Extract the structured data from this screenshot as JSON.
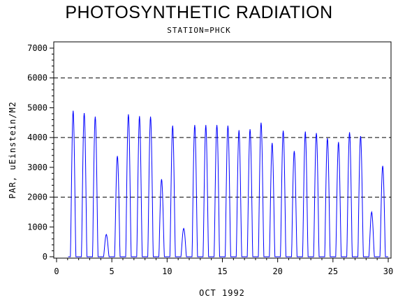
{
  "chart_data": {
    "type": "line",
    "title": "PHOTOSYNTHETIC RADIATION",
    "subtitle": "STATION=PHCK",
    "xlabel": "OCT 1992",
    "ylabel": "PAR, uEinstein/M2",
    "xlim": [
      0,
      30
    ],
    "ylim": [
      0,
      7000
    ],
    "x_ticks": [
      "0",
      "5",
      "10",
      "15",
      "20",
      "25",
      "30"
    ],
    "y_ticks": [
      "0",
      "1000",
      "2000",
      "3000",
      "4000",
      "5000",
      "6000",
      "7000"
    ],
    "reference_lines": [
      2000,
      4000,
      6000
    ],
    "series": [
      {
        "color": "#0000ff",
        "daily_peaks": [
          {
            "day": 1,
            "peak": 4900
          },
          {
            "day": 2,
            "peak": 4820
          },
          {
            "day": 3,
            "peak": 4700
          },
          {
            "day": 4,
            "peak": 750
          },
          {
            "day": 5,
            "peak": 3380
          },
          {
            "day": 6,
            "peak": 4780
          },
          {
            "day": 7,
            "peak": 4720
          },
          {
            "day": 8,
            "peak": 4700
          },
          {
            "day": 9,
            "peak": 2600
          },
          {
            "day": 10,
            "peak": 4400
          },
          {
            "day": 11,
            "peak": 950
          },
          {
            "day": 12,
            "peak": 4420
          },
          {
            "day": 13,
            "peak": 4420
          },
          {
            "day": 14,
            "peak": 4420
          },
          {
            "day": 15,
            "peak": 4400
          },
          {
            "day": 16,
            "peak": 4250
          },
          {
            "day": 17,
            "peak": 4280
          },
          {
            "day": 18,
            "peak": 4500
          },
          {
            "day": 19,
            "peak": 3820
          },
          {
            "day": 20,
            "peak": 4230
          },
          {
            "day": 21,
            "peak": 3550
          },
          {
            "day": 22,
            "peak": 4200
          },
          {
            "day": 23,
            "peak": 4150
          },
          {
            "day": 24,
            "peak": 3980
          },
          {
            "day": 25,
            "peak": 3850
          },
          {
            "day": 26,
            "peak": 4180
          },
          {
            "day": 27,
            "peak": 4050
          },
          {
            "day": 28,
            "peak": 1500
          },
          {
            "day": 29,
            "peak": 3050
          }
        ]
      }
    ]
  }
}
